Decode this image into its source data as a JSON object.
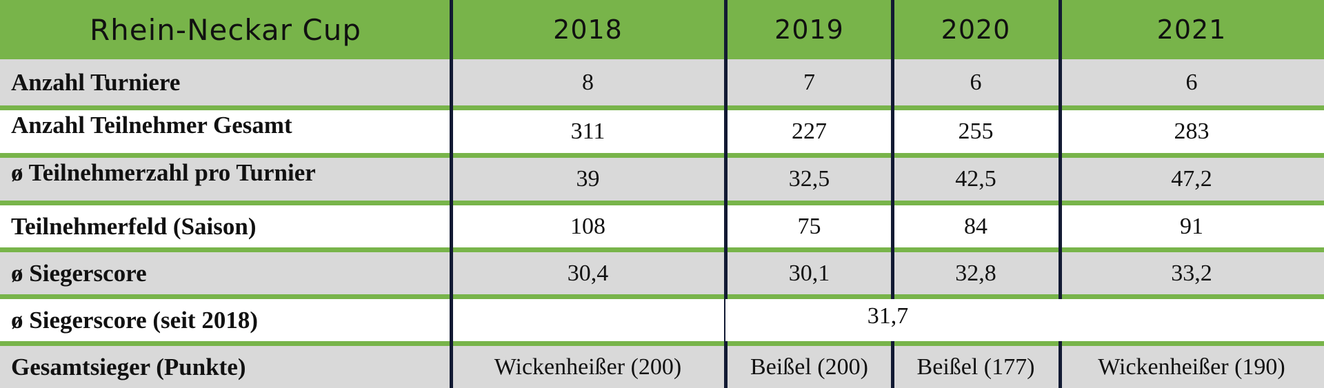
{
  "header": {
    "title": "Rhein-Neckar Cup",
    "years": [
      "2018",
      "2019",
      "2020",
      "2021"
    ]
  },
  "rows": [
    {
      "label": "Anzahl Turniere",
      "values": [
        "8",
        "7",
        "6",
        "6"
      ]
    },
    {
      "label": "Anzahl Teilnehmer Gesamt",
      "values": [
        "311",
        "227",
        "255",
        "283"
      ]
    },
    {
      "label": "ø Teilnehmerzahl pro Turnier",
      "values": [
        "39",
        "32,5",
        "42,5",
        "47,2"
      ]
    },
    {
      "label": "Teilnehmerfeld (Saison)",
      "values": [
        "108",
        "75",
        "84",
        "91"
      ]
    },
    {
      "label": "ø Siegerscore",
      "values": [
        "30,4",
        "30,1",
        "32,8",
        "33,2"
      ]
    },
    {
      "label": "ø Siegerscore (seit 2018)",
      "span_value": "31,7"
    },
    {
      "label": "Gesamtsieger (Punkte)",
      "values": [
        "Wickenheißer (200)",
        "Beißel (200)",
        "Beißel (177)",
        "Wickenheißer (190)"
      ]
    }
  ],
  "colors": {
    "header_green": "#78b44a",
    "row_grey": "#d9d9d9",
    "row_white": "#ffffff",
    "divider_navy": "#121a33"
  }
}
